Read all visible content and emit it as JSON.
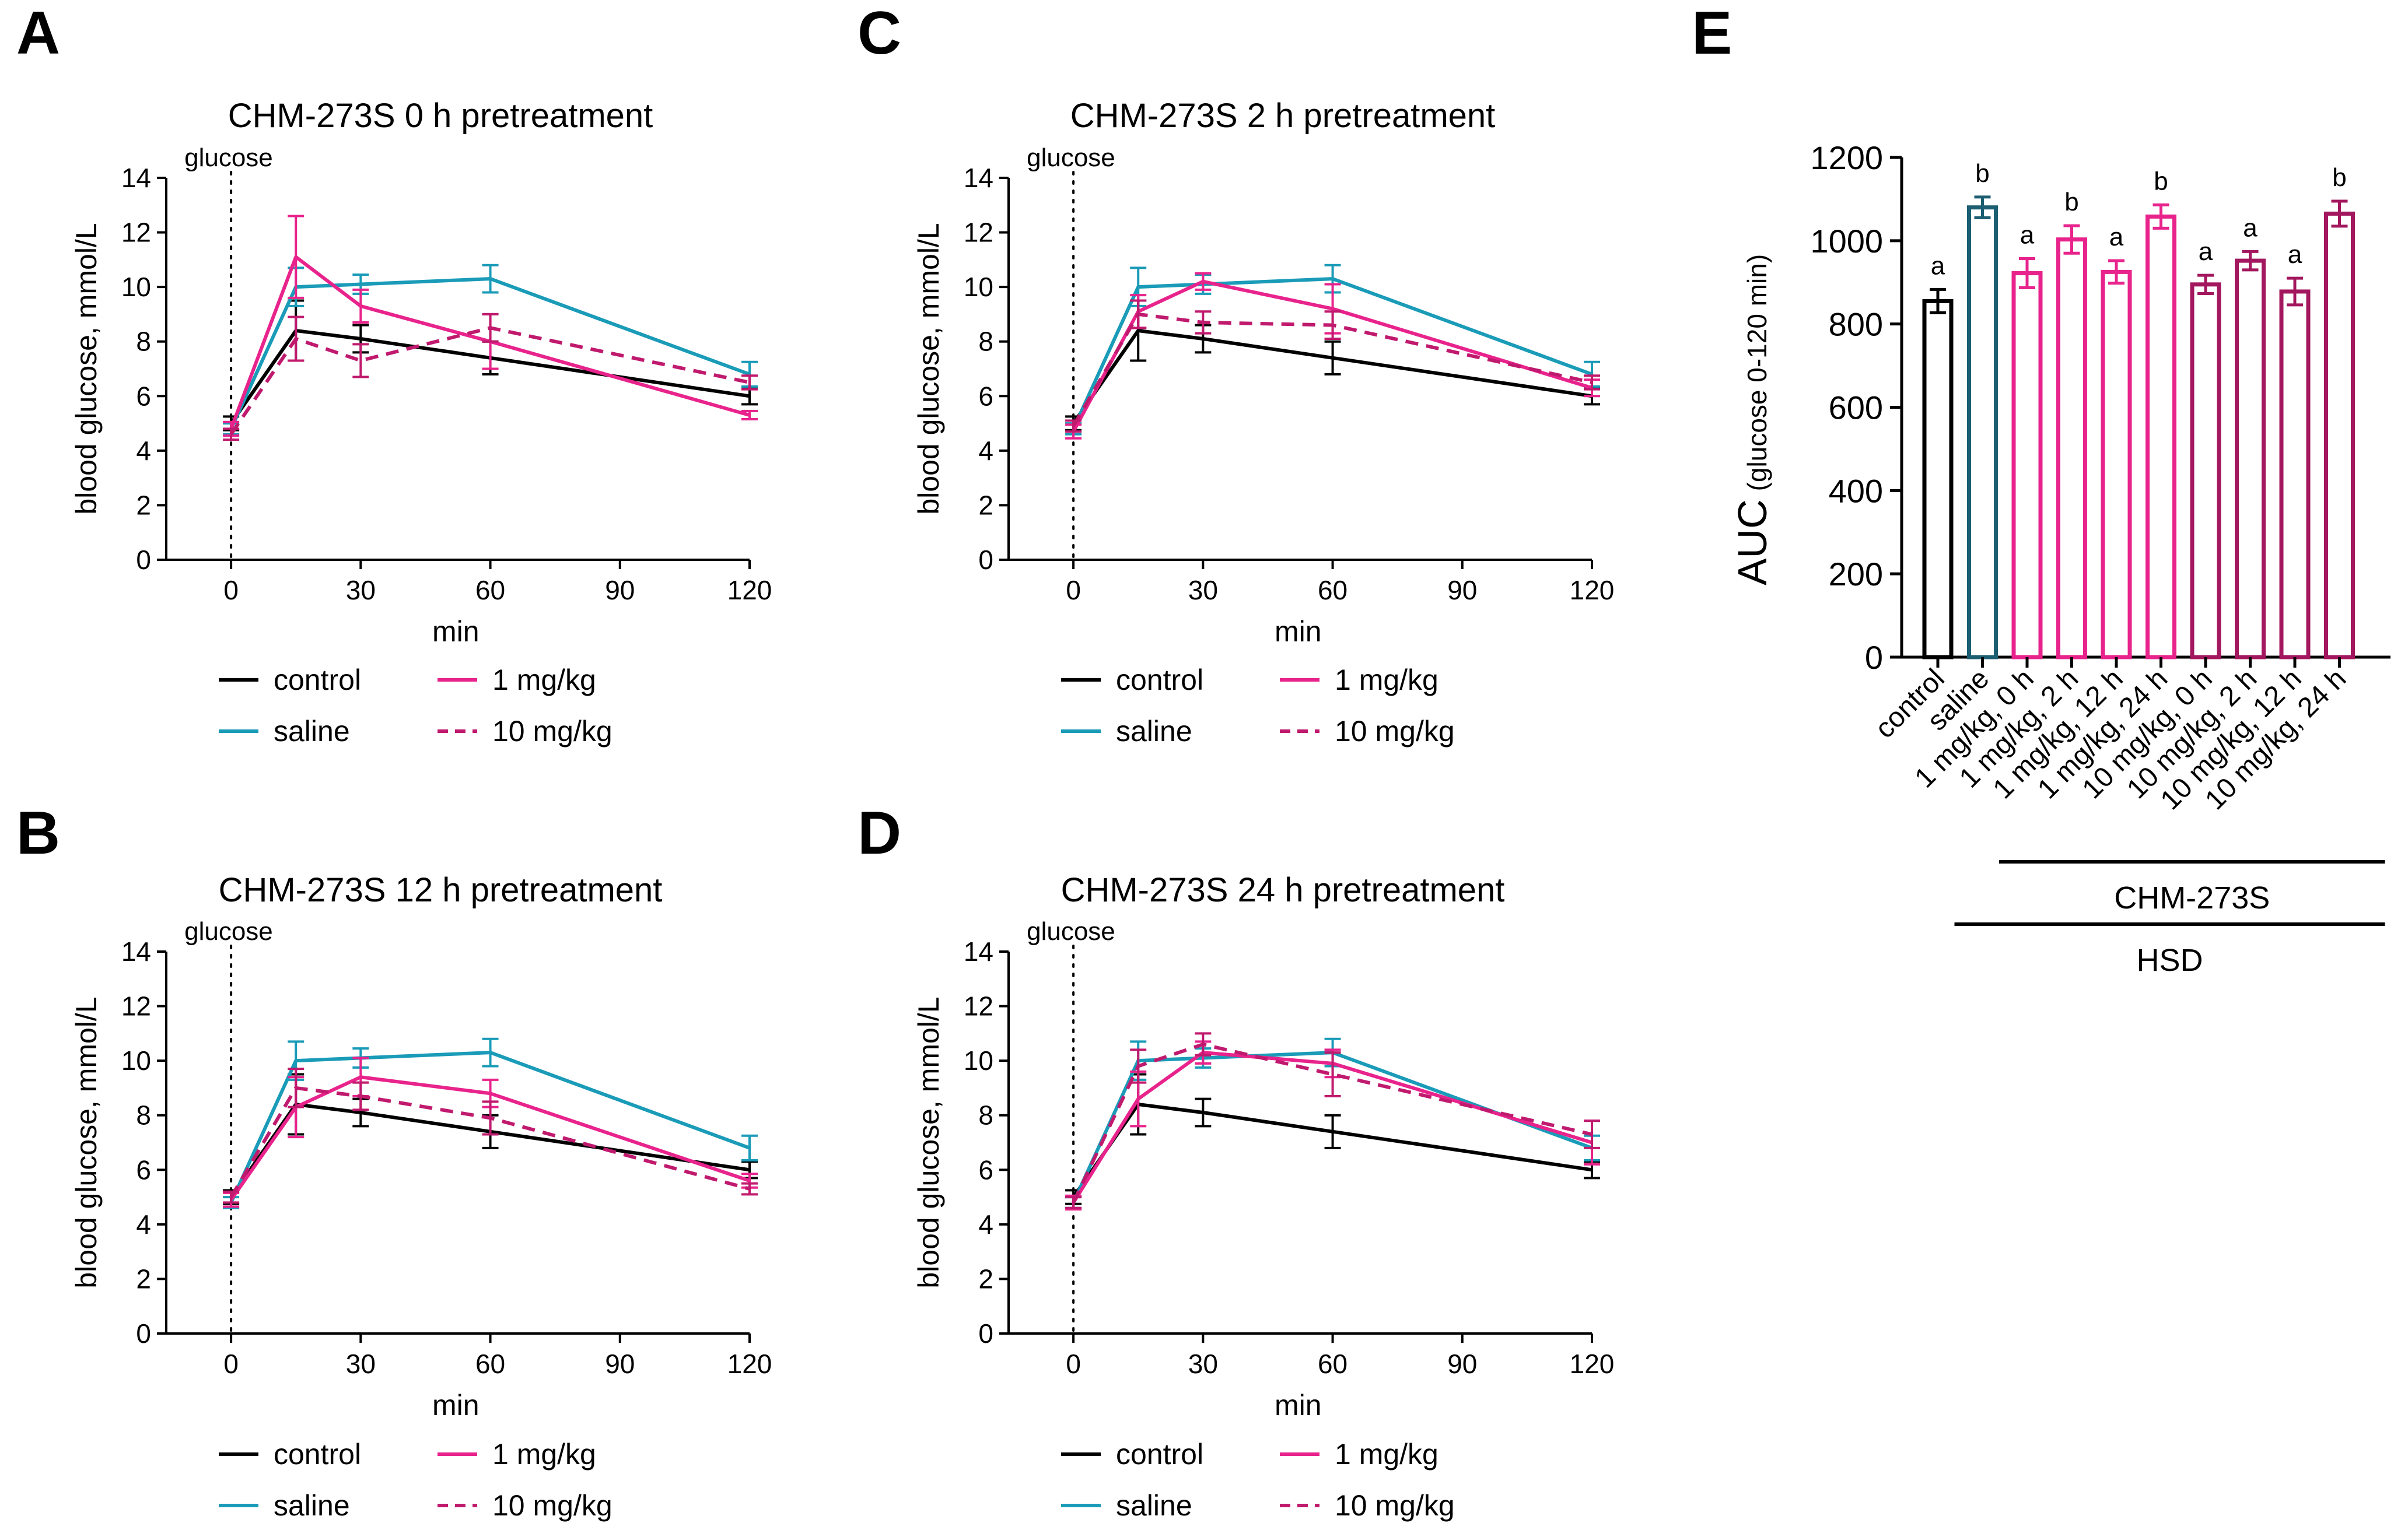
{
  "panel_letters": [
    "A",
    "B",
    "C",
    "D",
    "E"
  ],
  "colors": {
    "control": "#000000",
    "saline": "#1a9bb8",
    "dose1": "#e8238c",
    "dose10": "#c01a6e",
    "auc_control": "#000000",
    "auc_saline": "#1d5f72",
    "auc_1mg": "#e8238c",
    "auc_10mg": "#a3175e"
  },
  "chart_data": [
    {
      "type": "line",
      "panel": "A",
      "title": "CHM-273S 0 h pretreatment",
      "xlabel": "min",
      "ylabel": "blood glucose, mmol/L",
      "xlim": [
        -15,
        120
      ],
      "ylim": [
        0,
        14
      ],
      "xticks": [
        0,
        30,
        60,
        90,
        120
      ],
      "yticks": [
        0,
        2,
        4,
        6,
        8,
        10,
        12,
        14
      ],
      "annotation": "glucose",
      "annotation_x": 0,
      "legend": [
        "control",
        "saline",
        "1 mg/kg",
        "10 mg/kg"
      ],
      "series": [
        {
          "name": "control",
          "x": [
            0,
            15,
            30,
            60,
            120
          ],
          "y": [
            5.0,
            8.4,
            8.1,
            7.4,
            6.0
          ],
          "err": [
            0.25,
            1.1,
            0.5,
            0.6,
            0.3
          ],
          "style": "solid",
          "color_key": "control"
        },
        {
          "name": "saline",
          "x": [
            0,
            15,
            30,
            60,
            120
          ],
          "y": [
            4.8,
            10.0,
            10.1,
            10.3,
            6.8
          ],
          "err": [
            0.2,
            0.7,
            0.35,
            0.5,
            0.45
          ],
          "style": "solid",
          "color_key": "saline"
        },
        {
          "name": "1 mg/kg",
          "x": [
            0,
            15,
            30,
            60,
            120
          ],
          "y": [
            4.8,
            11.1,
            9.3,
            8.0,
            5.3
          ],
          "err": [
            0.25,
            1.5,
            0.6,
            1.0,
            0.15
          ],
          "style": "solid",
          "color_key": "dose1"
        },
        {
          "name": "10 mg/kg",
          "x": [
            0,
            15,
            30,
            60,
            120
          ],
          "y": [
            4.6,
            8.1,
            7.3,
            8.5,
            6.5
          ],
          "err": [
            0.2,
            0.8,
            0.6,
            0.5,
            0.25
          ],
          "style": "dashed",
          "color_key": "dose10"
        }
      ]
    },
    {
      "type": "line",
      "panel": "B",
      "title": "CHM-273S 12 h pretreatment",
      "xlabel": "min",
      "ylabel": "blood glucose, mmol/L",
      "xlim": [
        -15,
        120
      ],
      "ylim": [
        0,
        14
      ],
      "xticks": [
        0,
        30,
        60,
        90,
        120
      ],
      "yticks": [
        0,
        2,
        4,
        6,
        8,
        10,
        12,
        14
      ],
      "annotation": "glucose",
      "annotation_x": 0,
      "legend": [
        "control",
        "saline",
        "1 mg/kg",
        "10 mg/kg"
      ],
      "series": [
        {
          "name": "control",
          "x": [
            0,
            15,
            30,
            60,
            120
          ],
          "y": [
            5.0,
            8.4,
            8.1,
            7.4,
            6.0
          ],
          "err": [
            0.25,
            1.1,
            0.5,
            0.6,
            0.3
          ],
          "style": "solid",
          "color_key": "control"
        },
        {
          "name": "saline",
          "x": [
            0,
            15,
            30,
            60,
            120
          ],
          "y": [
            4.8,
            10.0,
            10.1,
            10.3,
            6.8
          ],
          "err": [
            0.2,
            0.7,
            0.35,
            0.5,
            0.45
          ],
          "style": "solid",
          "color_key": "saline"
        },
        {
          "name": "1 mg/kg",
          "x": [
            0,
            15,
            30,
            60,
            120
          ],
          "y": [
            4.9,
            8.3,
            9.4,
            8.8,
            5.6
          ],
          "err": [
            0.25,
            1.1,
            0.7,
            0.5,
            0.25
          ],
          "style": "solid",
          "color_key": "dose1"
        },
        {
          "name": "10 mg/kg",
          "x": [
            0,
            15,
            30,
            60,
            120
          ],
          "y": [
            5.0,
            9.0,
            8.7,
            7.9,
            5.3
          ],
          "err": [
            0.2,
            0.7,
            0.5,
            0.6,
            0.2
          ],
          "style": "dashed",
          "color_key": "dose10"
        }
      ]
    },
    {
      "type": "line",
      "panel": "C",
      "title": "CHM-273S 2 h pretreatment",
      "xlabel": "min",
      "ylabel": "blood glucose, mmol/L",
      "xlim": [
        -15,
        120
      ],
      "ylim": [
        0,
        14
      ],
      "xticks": [
        0,
        30,
        60,
        90,
        120
      ],
      "yticks": [
        0,
        2,
        4,
        6,
        8,
        10,
        12,
        14
      ],
      "annotation": "glucose",
      "annotation_x": 0,
      "legend": [
        "control",
        "saline",
        "1 mg/kg",
        "10 mg/kg"
      ],
      "series": [
        {
          "name": "control",
          "x": [
            0,
            15,
            30,
            60,
            120
          ],
          "y": [
            5.0,
            8.4,
            8.1,
            7.4,
            6.0
          ],
          "err": [
            0.25,
            1.1,
            0.5,
            0.6,
            0.3
          ],
          "style": "solid",
          "color_key": "control"
        },
        {
          "name": "saline",
          "x": [
            0,
            15,
            30,
            60,
            120
          ],
          "y": [
            4.8,
            10.0,
            10.1,
            10.3,
            6.8
          ],
          "err": [
            0.2,
            0.7,
            0.35,
            0.5,
            0.45
          ],
          "style": "solid",
          "color_key": "saline"
        },
        {
          "name": "1 mg/kg",
          "x": [
            0,
            15,
            30,
            60,
            120
          ],
          "y": [
            4.7,
            9.1,
            10.2,
            9.2,
            6.3
          ],
          "err": [
            0.25,
            0.6,
            0.3,
            0.9,
            0.3
          ],
          "style": "solid",
          "color_key": "dose1"
        },
        {
          "name": "10 mg/kg",
          "x": [
            0,
            15,
            30,
            60,
            120
          ],
          "y": [
            4.9,
            9.0,
            8.7,
            8.6,
            6.5
          ],
          "err": [
            0.2,
            0.5,
            0.4,
            0.5,
            0.25
          ],
          "style": "dashed",
          "color_key": "dose10"
        }
      ]
    },
    {
      "type": "line",
      "panel": "D",
      "title": "CHM-273S 24 h pretreatment",
      "xlabel": "min",
      "ylabel": "blood glucose, mmol/L",
      "xlim": [
        -15,
        120
      ],
      "ylim": [
        0,
        14
      ],
      "xticks": [
        0,
        30,
        60,
        90,
        120
      ],
      "yticks": [
        0,
        2,
        4,
        6,
        8,
        10,
        12,
        14
      ],
      "annotation": "glucose",
      "annotation_x": 0,
      "legend": [
        "control",
        "saline",
        "1 mg/kg",
        "10 mg/kg"
      ],
      "series": [
        {
          "name": "control",
          "x": [
            0,
            15,
            30,
            60,
            120
          ],
          "y": [
            5.0,
            8.4,
            8.1,
            7.4,
            6.0
          ],
          "err": [
            0.25,
            1.1,
            0.5,
            0.6,
            0.3
          ],
          "style": "solid",
          "color_key": "control"
        },
        {
          "name": "saline",
          "x": [
            0,
            15,
            30,
            60,
            120
          ],
          "y": [
            4.8,
            10.0,
            10.1,
            10.3,
            6.8
          ],
          "err": [
            0.2,
            0.7,
            0.35,
            0.5,
            0.45
          ],
          "style": "solid",
          "color_key": "saline"
        },
        {
          "name": "1 mg/kg",
          "x": [
            0,
            15,
            30,
            60,
            120
          ],
          "y": [
            4.8,
            8.6,
            10.3,
            9.9,
            7.0
          ],
          "err": [
            0.25,
            1.0,
            0.4,
            0.5,
            0.8
          ],
          "style": "solid",
          "color_key": "dose1"
        },
        {
          "name": "10 mg/kg",
          "x": [
            0,
            15,
            30,
            60,
            120
          ],
          "y": [
            4.8,
            9.8,
            10.6,
            9.5,
            7.3
          ],
          "err": [
            0.2,
            0.6,
            0.4,
            0.8,
            0.5
          ],
          "style": "dashed",
          "color_key": "dose10"
        }
      ]
    },
    {
      "type": "bar",
      "panel": "E",
      "ylabel_main": "AUC",
      "ylabel_sub": "(glucose 0-120 min)",
      "ylim": [
        0,
        1200
      ],
      "yticks": [
        0,
        200,
        400,
        600,
        800,
        1000,
        1200
      ],
      "categories": [
        "control",
        "saline",
        "1 mg/kg, 0 h",
        "1 mg/kg, 2 h",
        "1 mg/kg, 12 h",
        "1 mg/kg, 24 h",
        "10 mg/kg, 0 h",
        "10 mg/kg, 2 h",
        "10 mg/kg, 12 h",
        "10 mg/kg, 24 h"
      ],
      "values": [
        855,
        1080,
        922,
        1003,
        925,
        1058,
        895,
        952,
        878,
        1065
      ],
      "errors": [
        28,
        25,
        35,
        33,
        27,
        28,
        22,
        22,
        32,
        30
      ],
      "significance": [
        "a",
        "b",
        "a",
        "b",
        "a",
        "b",
        "a",
        "a",
        "a",
        "b"
      ],
      "bar_color_keys": [
        "auc_control",
        "auc_saline",
        "auc_1mg",
        "auc_1mg",
        "auc_1mg",
        "auc_1mg",
        "auc_10mg",
        "auc_10mg",
        "auc_10mg",
        "auc_10mg"
      ],
      "group_labels": [
        {
          "label": "CHM-273S",
          "from": 2,
          "to": 9
        },
        {
          "label": "HSD",
          "from": 1,
          "to": 9
        }
      ]
    }
  ]
}
